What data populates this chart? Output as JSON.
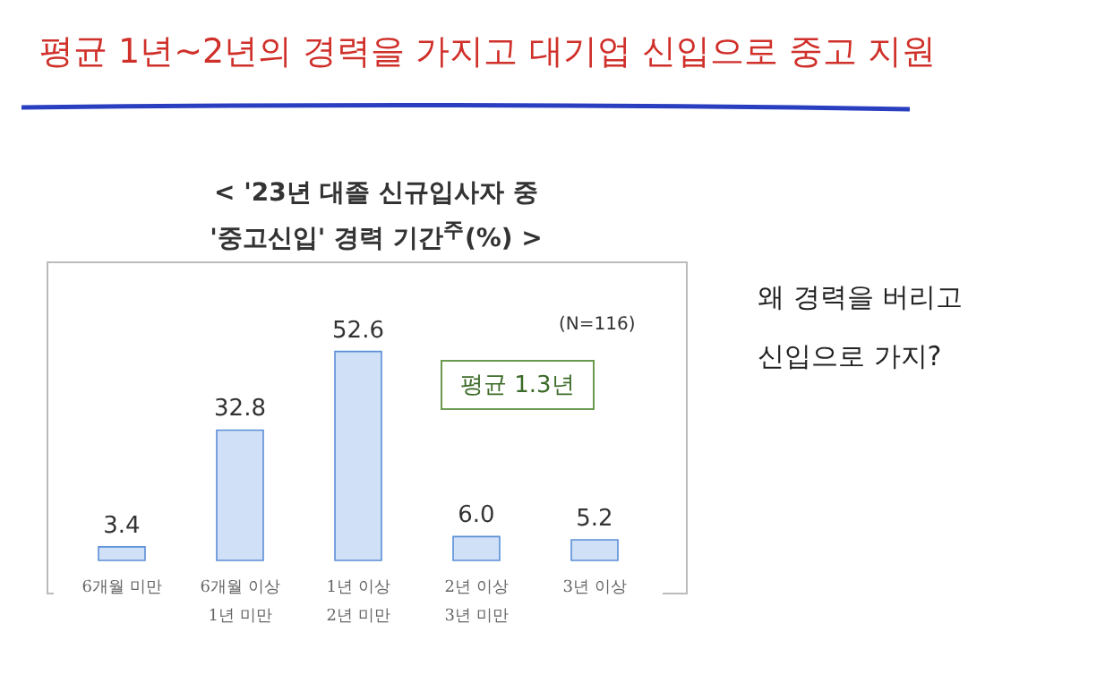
{
  "chart_data": {
    "type": "bar",
    "title": "평균 1년~2년의 경력을 가지고 대기업 신입으로 중고 지원",
    "subtitle": "< '23년 대졸 신규입사자 중\n'중고신입' 경력 기간$^{주}$(%) >",
    "categories": [
      "6개월 미만",
      "6개월 이상\n1년 미만",
      "1년 이상\n2년 미만",
      "2년 이상\n3년 미만",
      "3년 이상"
    ],
    "values": [
      3.4,
      32.8,
      52.6,
      6.0,
      5.2
    ],
    "value_labels": [
      "3.4",
      "32.8",
      "52.6",
      "6.0",
      "5.2"
    ],
    "color": "#cfe0f7",
    "annotations": [
      "(N=116)",
      "평균 1.3년",
      "왜 경력을 버리고\n신입으로 가지?"
    ]
  }
}
